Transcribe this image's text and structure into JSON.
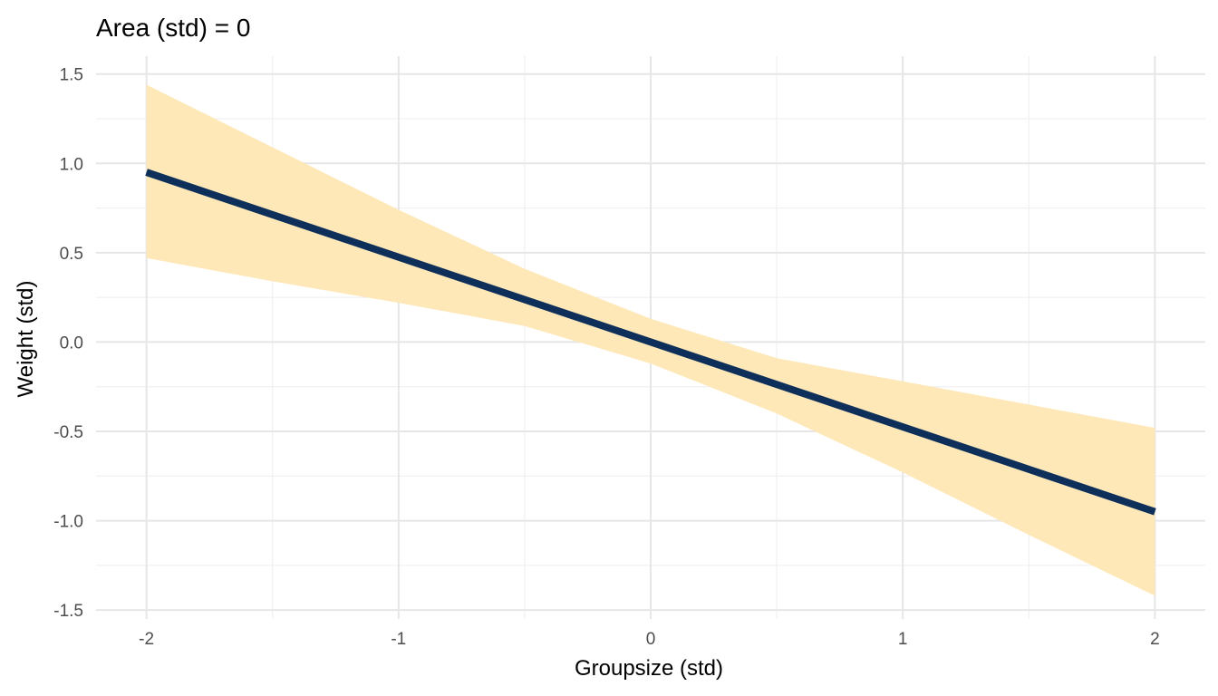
{
  "chart_data": {
    "type": "line",
    "title": "Area (std) = 0",
    "xlabel": "Groupsize (std)",
    "ylabel": "Weight (std)",
    "xlim": [
      -2.2,
      2.2
    ],
    "ylim": [
      -1.55,
      1.6
    ],
    "x_ticks": [
      -2,
      -1,
      0,
      1,
      2
    ],
    "x_tick_labels": [
      "-2",
      "-1",
      "0",
      "1",
      "2"
    ],
    "y_ticks": [
      -1.5,
      -1.0,
      -0.5,
      0.0,
      0.5,
      1.0,
      1.5
    ],
    "y_tick_labels": [
      "-1.5",
      "-1.0",
      "-0.5",
      "0.0",
      "0.5",
      "1.0",
      "1.5"
    ],
    "grid": true,
    "series": [
      {
        "values_x": [
          -2,
          2
        ],
        "values_y": [
          0.95,
          -0.95
        ],
        "color": "#0d2f5a"
      }
    ],
    "interval": {
      "x": [
        -2,
        -1.5,
        -1,
        -0.5,
        0,
        0.5,
        1,
        1.5,
        2
      ],
      "lower": [
        0.47,
        0.34,
        0.22,
        0.09,
        -0.12,
        -0.4,
        -0.73,
        -1.08,
        -1.42
      ],
      "upper": [
        1.44,
        1.09,
        0.74,
        0.41,
        0.13,
        -0.09,
        -0.22,
        -0.35,
        -0.48
      ],
      "color": "#ffe8b8"
    }
  }
}
